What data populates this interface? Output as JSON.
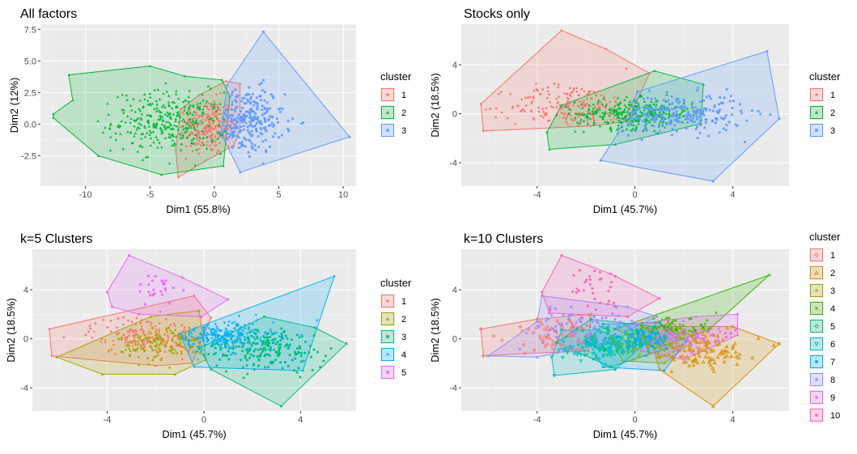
{
  "palettes": {
    "k3": [
      "#F8766D",
      "#00BA38",
      "#619CFF"
    ],
    "k5": [
      "#F8766D",
      "#A3A500",
      "#00BF7D",
      "#00B0F6",
      "#E76BF3"
    ],
    "k10": [
      "#F8766D",
      "#D89000",
      "#A3A500",
      "#39B600",
      "#00BF7D",
      "#00BFC4",
      "#00B0F6",
      "#9590FF",
      "#E76BF3",
      "#FF62BC"
    ]
  },
  "chart_data": [
    {
      "type": "scatter",
      "title": "All factors",
      "xlabel": "Dim1 (55.8%)",
      "ylabel": "Dim2 (12%)",
      "xlim": [
        -13.5,
        11.0
      ],
      "ylim": [
        -4.9,
        7.9
      ],
      "xticks": [
        -10,
        -5,
        0,
        5,
        10
      ],
      "xtick_labels": [
        "-10",
        "-5",
        "0",
        "5",
        "10"
      ],
      "yticks": [
        -2.5,
        0,
        2.5,
        5,
        7.5
      ],
      "ytick_labels": [
        "-2.5",
        "0.0",
        "2.5",
        "5.0",
        "7.5"
      ],
      "grid": true,
      "legend": {
        "title": "cluster",
        "position": "right",
        "labels": [
          "1",
          "2",
          "3"
        ],
        "shapes": [
          "circle",
          "triangle",
          "square"
        ]
      },
      "clusters": [
        {
          "name": "1",
          "center": [
            -0.5,
            -0.2
          ],
          "spread": [
            1.1,
            1.1
          ],
          "n": 240,
          "hull": [
            [
              -3.0,
              -2.0
            ],
            [
              -2.6,
              1.2
            ],
            [
              -1.2,
              2.3
            ],
            [
              0.9,
              3.4
            ],
            [
              2.0,
              3.2
            ],
            [
              2.0,
              -0.5
            ],
            [
              1.5,
              -1.7
            ],
            [
              -0.7,
              -2.9
            ],
            [
              -2.8,
              -4.2
            ]
          ]
        },
        {
          "name": "2",
          "center": [
            -3.5,
            0.2
          ],
          "spread": [
            2.2,
            1.2
          ],
          "n": 320,
          "hull": [
            [
              -12.5,
              0.8
            ],
            [
              -11.0,
              1.9
            ],
            [
              -11.3,
              3.9
            ],
            [
              -5.0,
              4.6
            ],
            [
              -2.3,
              3.8
            ],
            [
              0.6,
              3.5
            ],
            [
              1.2,
              2.2
            ],
            [
              0.7,
              -3.3
            ],
            [
              -4.1,
              -4.0
            ],
            [
              -9.0,
              -2.5
            ],
            [
              -12.5,
              0.5
            ]
          ]
        },
        {
          "name": "3",
          "center": [
            2.4,
            0.3
          ],
          "spread": [
            1.5,
            1.3
          ],
          "n": 250,
          "hull": [
            [
              1.0,
              3.1
            ],
            [
              3.8,
              7.3
            ],
            [
              10.5,
              -1.0
            ],
            [
              2.0,
              -3.8
            ],
            [
              0.5,
              -0.7
            ]
          ]
        }
      ]
    },
    {
      "type": "scatter",
      "title": "Stocks only",
      "xlabel": "Dim1 (45.7%)",
      "ylabel": "Dim2 (18.5%)",
      "xlim": [
        -7.1,
        6.3
      ],
      "ylim": [
        -5.9,
        7.3
      ],
      "xticks": [
        -4,
        0,
        4
      ],
      "xtick_labels": [
        "-4",
        "0",
        "4"
      ],
      "yticks": [
        -4,
        0,
        4
      ],
      "ytick_labels": [
        "-4",
        "0",
        "4"
      ],
      "grid": true,
      "legend": {
        "title": "cluster",
        "position": "right",
        "labels": [
          "1",
          "2",
          "3"
        ],
        "shapes": [
          "circle",
          "triangle",
          "square"
        ]
      },
      "clusters": [
        {
          "name": "1",
          "center": [
            -2.5,
            0.6
          ],
          "spread": [
            1.3,
            0.9
          ],
          "n": 220,
          "hull": [
            [
              -6.3,
              0.8
            ],
            [
              -3.0,
              6.8
            ],
            [
              -1.2,
              5.3
            ],
            [
              0.6,
              3.3
            ],
            [
              -0.3,
              -0.6
            ],
            [
              -1.8,
              -1.0
            ],
            [
              -6.2,
              -1.4
            ]
          ]
        },
        {
          "name": "2",
          "center": [
            0.0,
            0.0
          ],
          "spread": [
            1.2,
            0.6
          ],
          "n": 330,
          "hull": [
            [
              -3.6,
              -1.5
            ],
            [
              -3.5,
              -2.9
            ],
            [
              -0.8,
              -2.5
            ],
            [
              2.7,
              -0.8
            ],
            [
              2.8,
              2.4
            ],
            [
              0.8,
              3.5
            ],
            [
              -3.0,
              0.7
            ]
          ]
        },
        {
          "name": "3",
          "center": [
            1.8,
            0.0
          ],
          "spread": [
            1.3,
            0.8
          ],
          "n": 250,
          "hull": [
            [
              -1.4,
              -3.8
            ],
            [
              3.2,
              -5.5
            ],
            [
              5.9,
              -0.4
            ],
            [
              5.4,
              5.1
            ],
            [
              0.1,
              1.8
            ],
            [
              -0.7,
              -1.6
            ]
          ]
        }
      ]
    },
    {
      "type": "scatter",
      "title": "k=5 Clusters",
      "xlabel": "Dim1 (45.7%)",
      "ylabel": "Dim2 (18.5%)",
      "xlim": [
        -7.1,
        6.3
      ],
      "ylim": [
        -5.9,
        7.3
      ],
      "xticks": [
        -4,
        0,
        4
      ],
      "xtick_labels": [
        "-4",
        "0",
        "4"
      ],
      "yticks": [
        -4,
        0,
        4
      ],
      "ytick_labels": [
        "-4",
        "0",
        "4"
      ],
      "grid": true,
      "legend": {
        "title": "cluster",
        "position": "right",
        "labels": [
          "1",
          "2",
          "3",
          "4",
          "5"
        ],
        "shapes": [
          "circle",
          "triangle",
          "square",
          "plus",
          "square-filled"
        ]
      },
      "clusters": [
        {
          "name": "1",
          "center": [
            -2.5,
            0.3
          ],
          "spread": [
            1.1,
            0.8
          ],
          "n": 160,
          "hull": [
            [
              -6.4,
              0.8
            ],
            [
              -0.4,
              3.5
            ],
            [
              0.3,
              1.7
            ],
            [
              -0.5,
              -2.0
            ],
            [
              -2.0,
              -2.2
            ],
            [
              -6.3,
              -1.4
            ]
          ]
        },
        {
          "name": "2",
          "center": [
            -1.5,
            -0.3
          ],
          "spread": [
            1.0,
            0.7
          ],
          "n": 160,
          "hull": [
            [
              -6.1,
              -1.5
            ],
            [
              -4.2,
              -2.9
            ],
            [
              -1.2,
              -2.9
            ],
            [
              0.1,
              -1.7
            ],
            [
              -0.2,
              2.3
            ],
            [
              -2.2,
              1.8
            ]
          ]
        },
        {
          "name": "3",
          "center": [
            2.5,
            -0.8
          ],
          "spread": [
            1.3,
            0.9
          ],
          "n": 200,
          "hull": [
            [
              -0.2,
              -0.8
            ],
            [
              2.5,
              1.8
            ],
            [
              4.6,
              0.9
            ],
            [
              5.9,
              -0.4
            ],
            [
              3.2,
              -5.5
            ],
            [
              0.3,
              -2.5
            ]
          ]
        },
        {
          "name": "4",
          "center": [
            0.7,
            0.2
          ],
          "spread": [
            1.1,
            0.6
          ],
          "n": 240,
          "hull": [
            [
              -1.0,
              0.4
            ],
            [
              5.4,
              5.1
            ],
            [
              4.1,
              -2.6
            ],
            [
              -0.4,
              -2.3
            ]
          ]
        },
        {
          "name": "5",
          "center": [
            -1.8,
            4.2
          ],
          "spread": [
            0.6,
            0.8
          ],
          "n": 25,
          "hull": [
            [
              -4.0,
              3.8
            ],
            [
              -3.1,
              6.8
            ],
            [
              -0.9,
              5.0
            ],
            [
              1.0,
              3.2
            ],
            [
              -0.1,
              1.8
            ],
            [
              -2.7,
              2.0
            ],
            [
              -3.8,
              2.6
            ]
          ]
        }
      ]
    },
    {
      "type": "scatter",
      "title": "k=10 Clusters",
      "xlabel": "Dim1 (45.7%)",
      "ylabel": "Dim2 (18.5%)",
      "xlim": [
        -7.1,
        6.3
      ],
      "ylim": [
        -5.9,
        7.3
      ],
      "xticks": [
        -4,
        0,
        4
      ],
      "xtick_labels": [
        "-4",
        "0",
        "4"
      ],
      "yticks": [
        -4,
        0,
        4
      ],
      "ytick_labels": [
        "-4",
        "0",
        "4"
      ],
      "grid": true,
      "legend": {
        "title": "cluster",
        "position": "right",
        "labels": [
          "1",
          "2",
          "3",
          "4",
          "5",
          "6",
          "7",
          "8",
          "9",
          "10"
        ],
        "shapes": [
          "diamond-open",
          "triangle-open",
          "plus",
          "cross",
          "diamond-open",
          "triangle-down",
          "square-filled",
          "star",
          "diamond-filled",
          "asterisk"
        ]
      },
      "clusters": [
        {
          "name": "1",
          "center": [
            -3.0,
            0.5
          ],
          "spread": [
            1.1,
            0.7
          ],
          "n": 70,
          "hull": [
            [
              -6.3,
              0.8
            ],
            [
              -4.0,
              1.6
            ],
            [
              -1.8,
              2.0
            ],
            [
              -1.9,
              -1.0
            ],
            [
              -4.5,
              -1.2
            ],
            [
              -6.2,
              -1.4
            ]
          ]
        },
        {
          "name": "2",
          "center": [
            2.8,
            -1.0
          ],
          "spread": [
            1.2,
            0.9
          ],
          "n": 110,
          "hull": [
            [
              0.5,
              1.0
            ],
            [
              4.0,
              1.0
            ],
            [
              5.9,
              -0.4
            ],
            [
              3.2,
              -5.5
            ],
            [
              1.0,
              -2.5
            ]
          ]
        },
        {
          "name": "3",
          "center": [
            0.6,
            -0.4
          ],
          "spread": [
            0.8,
            0.5
          ],
          "n": 80,
          "hull": [
            [
              -1.0,
              0.0
            ],
            [
              1.5,
              1.3
            ],
            [
              2.5,
              0.0
            ],
            [
              1.2,
              -2.0
            ],
            [
              -0.5,
              -1.8
            ]
          ]
        },
        {
          "name": "4",
          "center": [
            1.5,
            0.7
          ],
          "spread": [
            1.0,
            0.5
          ],
          "n": 90,
          "hull": [
            [
              -0.8,
              0.8
            ],
            [
              5.5,
              5.2
            ],
            [
              3.0,
              0.7
            ],
            [
              0.8,
              -0.8
            ]
          ]
        },
        {
          "name": "5",
          "center": [
            -1.0,
            -0.3
          ],
          "spread": [
            0.8,
            0.6
          ],
          "n": 90,
          "hull": [
            [
              -3.2,
              -0.3
            ],
            [
              -1.8,
              1.6
            ],
            [
              0.8,
              1.0
            ],
            [
              1.3,
              -0.8
            ],
            [
              -1.0,
              -2.3
            ]
          ]
        },
        {
          "name": "6",
          "center": [
            -1.5,
            -0.8
          ],
          "spread": [
            0.8,
            0.5
          ],
          "n": 70,
          "hull": [
            [
              -3.4,
              -1.5
            ],
            [
              -3.3,
              -3.0
            ],
            [
              -0.8,
              -2.5
            ],
            [
              0.3,
              -0.6
            ],
            [
              -1.5,
              0.7
            ],
            [
              -3.0,
              0.7
            ]
          ]
        },
        {
          "name": "7",
          "center": [
            0.3,
            0.0
          ],
          "spread": [
            0.6,
            0.4
          ],
          "n": 90,
          "hull": [
            [
              -1.3,
              1.2
            ],
            [
              1.0,
              1.3
            ],
            [
              2.1,
              -0.2
            ],
            [
              1.2,
              -2.6
            ],
            [
              -1.3,
              -2.3
            ],
            [
              -1.9,
              -0.3
            ]
          ]
        },
        {
          "name": "8",
          "center": [
            -2.0,
            1.0
          ],
          "spread": [
            1.1,
            0.8
          ],
          "n": 80,
          "hull": [
            [
              -6.0,
              -1.4
            ],
            [
              -4.0,
              1.4
            ],
            [
              -3.8,
              3.5
            ],
            [
              -0.3,
              2.6
            ],
            [
              0.9,
              1.8
            ],
            [
              -1.5,
              -0.5
            ],
            [
              -4.0,
              -1.5
            ]
          ]
        },
        {
          "name": "9",
          "center": [
            2.3,
            0.1
          ],
          "spread": [
            1.1,
            0.5
          ],
          "n": 90,
          "hull": [
            [
              0.0,
              1.2
            ],
            [
              2.5,
              1.8
            ],
            [
              4.2,
              2.0
            ],
            [
              4.2,
              0.3
            ],
            [
              2.0,
              -1.7
            ],
            [
              0.3,
              -1.0
            ]
          ]
        },
        {
          "name": "10",
          "center": [
            -1.8,
            4.3
          ],
          "spread": [
            0.7,
            0.8
          ],
          "n": 30,
          "hull": [
            [
              -3.8,
              3.8
            ],
            [
              -3.0,
              6.8
            ],
            [
              -1.0,
              5.3
            ],
            [
              1.0,
              3.3
            ],
            [
              -0.3,
              1.8
            ],
            [
              -3.5,
              2.1
            ]
          ]
        }
      ]
    }
  ]
}
